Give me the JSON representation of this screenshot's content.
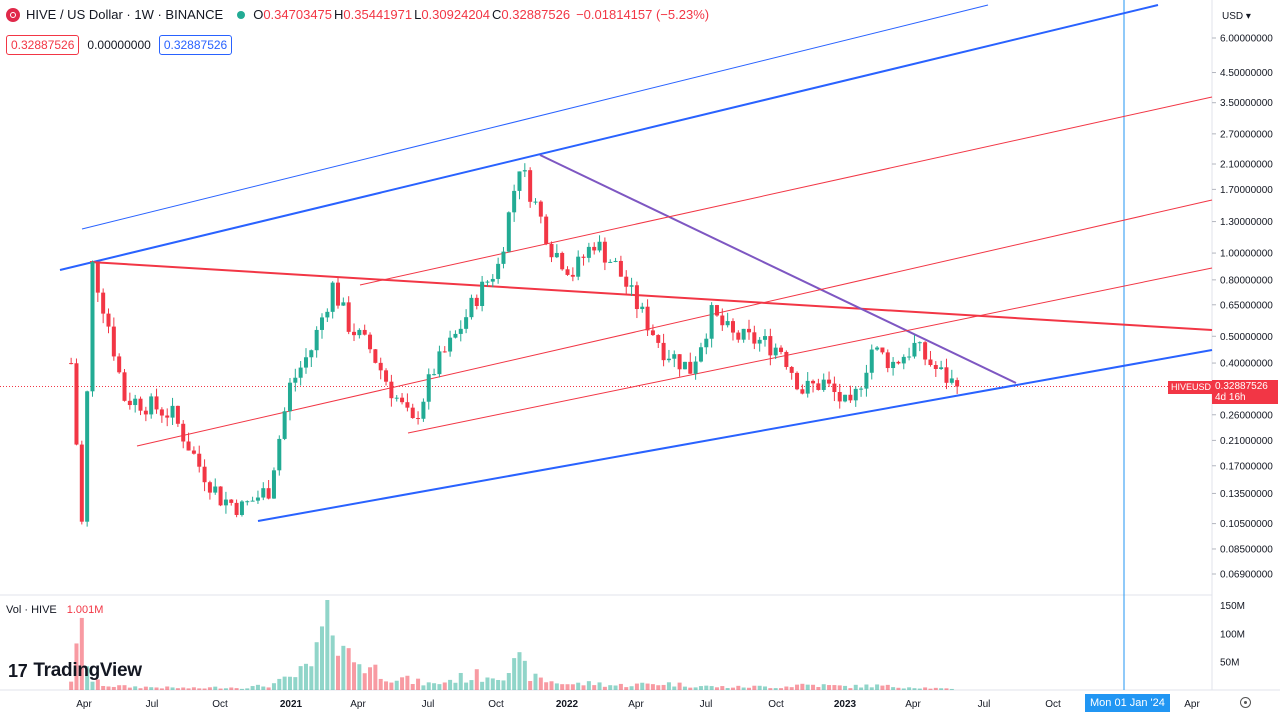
{
  "header": {
    "symbol_title": "HIVE / US Dollar · 1W · BINANCE",
    "ohlc": {
      "o_label": "O",
      "o": "0.34703475",
      "h_label": "H",
      "h": "0.35441971",
      "l_label": "L",
      "l": "0.30924204",
      "c_label": "C",
      "c": "0.32887526",
      "change": "−0.01814157 (−5.23%)"
    },
    "values": [
      "0.32887526",
      "0.00000000",
      "0.32887526"
    ]
  },
  "volume_legend": {
    "label": "Vol · HIVE",
    "value": "1.001M"
  },
  "logo": {
    "mark": "17",
    "text": "TradingView"
  },
  "price_axis": {
    "currency": "USD ▾",
    "ticks": [
      "6.00000000",
      "4.50000000",
      "3.50000000",
      "2.70000000",
      "2.10000000",
      "1.70000000",
      "1.30000000",
      "1.00000000",
      "0.80000000",
      "0.65000000",
      "0.50000000",
      "0.40000000",
      "0.26000000",
      "0.21000000",
      "0.17000000",
      "0.13500000",
      "0.10500000",
      "0.08500000",
      "0.06900000"
    ],
    "current_price": "0.32887526",
    "countdown": "4d 16h",
    "symbol_tag": "HIVEUSD"
  },
  "volume_axis": {
    "ticks": [
      "150M",
      "100M",
      "50M"
    ]
  },
  "time_axis": {
    "ticks": [
      "Apr",
      "Jul",
      "Oct",
      "2021",
      "Apr",
      "Jul",
      "Oct",
      "2022",
      "Apr",
      "Jul",
      "Oct",
      "2023",
      "Apr",
      "Jul",
      "Oct",
      "Apr"
    ],
    "crosshair_label": "Mon 01 Jan '24"
  },
  "colors": {
    "up": "#22ab94",
    "down": "#f23645",
    "blue_line": "#2962ff",
    "red_line": "#f23645",
    "purple_line": "#7e57c2",
    "crosshair": "#2196f3"
  },
  "chart_data": {
    "type": "candlestick",
    "title": "HIVE / US Dollar · 1W · BINANCE",
    "scale": "log",
    "y_range": [
      0.06,
      6.5
    ],
    "x_range": [
      "2020-03-01",
      "2024-05-15"
    ],
    "grid": false,
    "series": {
      "dates": [
        "2020-03-23",
        "2020-04-06",
        "2020-04-20",
        "2020-05-11",
        "2020-06-01",
        "2020-07-06",
        "2020-08-03",
        "2020-09-07",
        "2020-10-05",
        "2020-11-02",
        "2020-12-07",
        "2021-01-04",
        "2021-02-01",
        "2021-03-01",
        "2021-03-22",
        "2021-04-19",
        "2021-05-17",
        "2021-06-14",
        "2021-07-12",
        "2021-08-09",
        "2021-09-06",
        "2021-10-04",
        "2021-11-01",
        "2021-11-22",
        "2021-12-13",
        "2022-01-10",
        "2022-02-07",
        "2022-03-07",
        "2022-04-11",
        "2022-05-09",
        "2022-06-13",
        "2022-07-11",
        "2022-08-08",
        "2022-09-12",
        "2022-10-10",
        "2022-11-07",
        "2022-12-05",
        "2023-01-09",
        "2023-02-06",
        "2023-03-06",
        "2023-04-03",
        "2023-05-01",
        "2023-05-29"
      ],
      "close": [
        0.4,
        0.105,
        0.9,
        0.55,
        0.3,
        0.28,
        0.26,
        0.17,
        0.13,
        0.12,
        0.14,
        0.33,
        0.45,
        0.76,
        0.55,
        0.45,
        0.32,
        0.24,
        0.38,
        0.5,
        0.7,
        0.9,
        2.1,
        1.5,
        1.05,
        0.85,
        1.1,
        0.9,
        0.6,
        0.45,
        0.38,
        0.6,
        0.5,
        0.48,
        0.45,
        0.32,
        0.34,
        0.27,
        0.45,
        0.4,
        0.46,
        0.38,
        0.329
      ],
      "volume_millions": [
        20,
        100,
        15,
        8,
        6,
        5,
        4,
        3,
        5,
        4,
        8,
        20,
        40,
        145,
        60,
        40,
        25,
        15,
        10,
        20,
        25,
        30,
        45,
        20,
        15,
        10,
        12,
        8,
        10,
        12,
        8,
        6,
        5,
        6,
        5,
        10,
        8,
        6,
        8,
        6,
        5,
        3,
        1
      ]
    }
  }
}
